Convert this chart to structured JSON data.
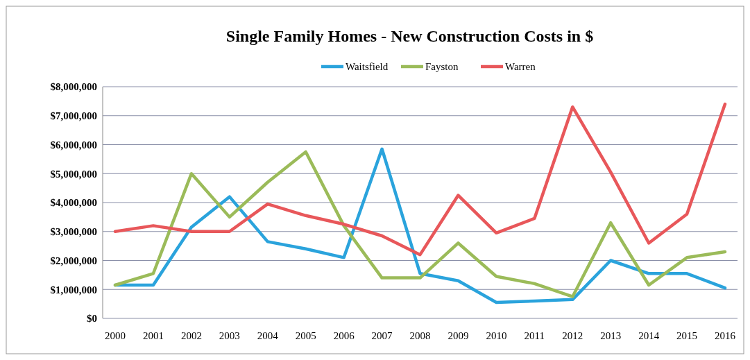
{
  "chart_data": {
    "type": "line",
    "title": "Single Family Homes - New Construction Costs in $",
    "categories": [
      "2000",
      "2001",
      "2002",
      "2003",
      "2004",
      "2005",
      "2006",
      "2007",
      "2008",
      "2009",
      "2010",
      "2011",
      "2012",
      "2013",
      "2014",
      "2015",
      "2016"
    ],
    "series": [
      {
        "name": "Waitsfield",
        "color": "#2aa3dc",
        "values": [
          1150000,
          1150000,
          3150000,
          4200000,
          2650000,
          2400000,
          2100000,
          5850000,
          1550000,
          1300000,
          550000,
          600000,
          650000,
          2000000,
          1550000,
          1550000,
          1050000
        ]
      },
      {
        "name": "Fayston",
        "color": "#9bbb59",
        "values": [
          1150000,
          1550000,
          5000000,
          3500000,
          4700000,
          5750000,
          3200000,
          1400000,
          1400000,
          2600000,
          1450000,
          1200000,
          750000,
          3300000,
          1150000,
          2100000,
          2300000
        ]
      },
      {
        "name": "Warren",
        "color": "#e8575a",
        "values": [
          3000000,
          3200000,
          3000000,
          3000000,
          3950000,
          3550000,
          3250000,
          2850000,
          2200000,
          4250000,
          2950000,
          3450000,
          7300000,
          5050000,
          2600000,
          3600000,
          7400000
        ]
      }
    ],
    "ylim": [
      0,
      8000000
    ],
    "yticks": [
      {
        "value": 0,
        "label": "$0"
      },
      {
        "value": 1000000,
        "label": "$1,000,000"
      },
      {
        "value": 2000000,
        "label": "$2,000,000"
      },
      {
        "value": 3000000,
        "label": "$3,000,000"
      },
      {
        "value": 4000000,
        "label": "$4,000,000"
      },
      {
        "value": 5000000,
        "label": "$5,000,000"
      },
      {
        "value": 6000000,
        "label": "$6,000,000"
      },
      {
        "value": 7000000,
        "label": "$7,000,000"
      },
      {
        "value": 8000000,
        "label": "$8,000,000"
      }
    ],
    "grid": "y",
    "legend": "top",
    "marker": "none",
    "line_style": "solid"
  }
}
